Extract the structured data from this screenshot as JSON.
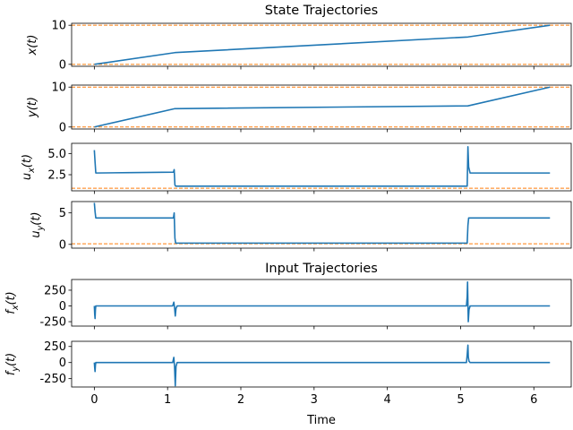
{
  "chart_data": {
    "type": "line",
    "titles": [
      "State Trajectories",
      "Input Trajectories"
    ],
    "xlabel": "Time",
    "xlim": [
      -0.31,
      6.51
    ],
    "x_ticks": [
      0,
      1,
      2,
      3,
      4,
      5,
      6
    ],
    "series_color": "#1f77b4",
    "bound_color": "#ff7f0e",
    "grid": false,
    "panels": [
      {
        "id": "x",
        "ylabel": "x(t)",
        "ylim": [
          -0.5,
          10.5
        ],
        "y_ticks": [
          0,
          10
        ],
        "bounds": [
          0,
          10
        ],
        "series": {
          "x": [
            0,
            1.1,
            5.1,
            6.22
          ],
          "y": [
            0,
            3.0,
            7.0,
            10.0
          ]
        }
      },
      {
        "id": "y",
        "ylabel": "y(t)",
        "ylim": [
          -0.5,
          10.5
        ],
        "y_ticks": [
          0,
          10
        ],
        "bounds": [
          0,
          10
        ],
        "series": {
          "x": [
            0,
            1.1,
            5.1,
            6.22
          ],
          "y": [
            0,
            4.6,
            5.3,
            10.0
          ]
        }
      },
      {
        "id": "ux",
        "ylabel": "u_x(t)",
        "ylim": [
          0.6,
          6.2
        ],
        "y_ticks": [
          2.5,
          5.0
        ],
        "bounds": [
          0.9
        ],
        "series": {
          "x": [
            0,
            0.01,
            0.02,
            0.5,
            1.08,
            1.09,
            1.1,
            1.11,
            1.13,
            3.0,
            5.08,
            5.09,
            5.1,
            5.11,
            5.13,
            6.22
          ],
          "y": [
            5.4,
            4.0,
            2.7,
            2.75,
            2.8,
            3.1,
            1.3,
            1.15,
            1.15,
            1.15,
            1.15,
            1.15,
            5.8,
            3.4,
            2.7,
            2.7
          ]
        }
      },
      {
        "id": "uy",
        "ylabel": "u_y(t)",
        "ylim": [
          -0.6,
          6.8
        ],
        "y_ticks": [
          0,
          5
        ],
        "bounds": [
          0.1
        ],
        "series": {
          "x": [
            0,
            0.01,
            0.02,
            0.5,
            1.08,
            1.09,
            1.1,
            1.11,
            1.13,
            3.0,
            5.08,
            5.09,
            5.1,
            5.11,
            5.13,
            6.22
          ],
          "y": [
            6.6,
            5.2,
            4.2,
            4.2,
            4.2,
            5.0,
            1.0,
            0.2,
            0.2,
            0.2,
            0.2,
            0.2,
            3.0,
            4.2,
            4.2,
            4.2
          ]
        }
      },
      {
        "id": "fx",
        "ylabel": "f_x(t)",
        "ylim": [
          -320,
          420
        ],
        "y_ticks": [
          -250,
          0,
          250
        ],
        "bounds": [],
        "series": {
          "x": [
            0,
            0.005,
            0.01,
            0.015,
            0.02,
            0.04,
            1.07,
            1.085,
            1.095,
            1.105,
            1.115,
            1.13,
            5.08,
            5.09,
            5.095,
            5.1,
            5.105,
            5.115,
            5.13,
            6.22
          ],
          "y": [
            0,
            -130,
            -200,
            -60,
            0,
            0,
            0,
            60,
            -20,
            -160,
            -40,
            0,
            0,
            150,
            380,
            60,
            -250,
            -60,
            0,
            0
          ]
        }
      },
      {
        "id": "fy",
        "ylabel": "f_y(t)",
        "ylim": [
          -380,
          330
        ],
        "y_ticks": [
          -250,
          0,
          250
        ],
        "bounds": [],
        "series": {
          "x": [
            0,
            0.005,
            0.01,
            0.015,
            0.02,
            0.04,
            1.07,
            1.085,
            1.095,
            1.105,
            1.115,
            1.13,
            5.08,
            5.09,
            5.1,
            5.105,
            5.115,
            5.13,
            6.22
          ],
          "y": [
            0,
            -80,
            -140,
            -40,
            0,
            0,
            0,
            80,
            -60,
            -360,
            -60,
            0,
            0,
            120,
            270,
            90,
            20,
            0,
            0
          ]
        }
      }
    ]
  }
}
